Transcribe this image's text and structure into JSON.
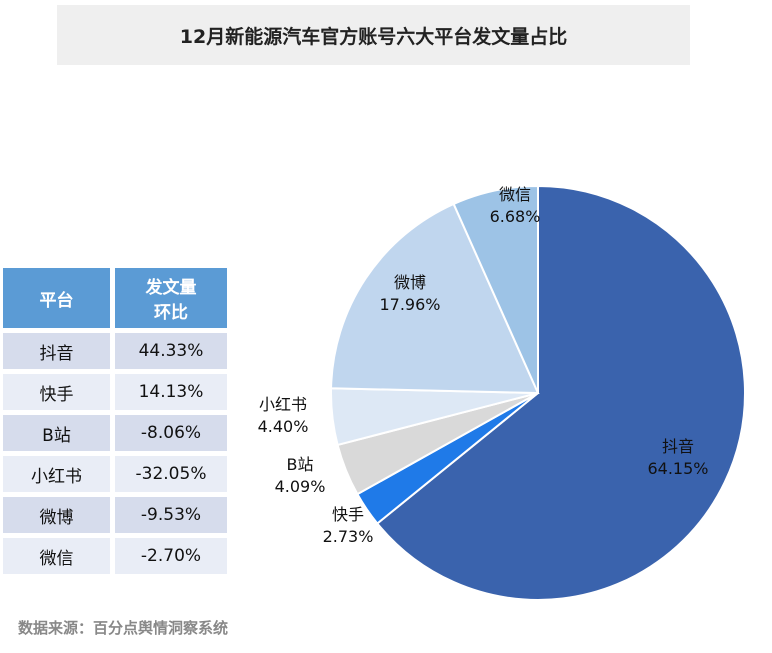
{
  "chart_data": {
    "type": "pie",
    "title": "12月新能源汽车官方账号六大平台发文量占比",
    "categories": [
      "抖音",
      "快手",
      "B站",
      "小红书",
      "微博",
      "微信"
    ],
    "values": [
      64.15,
      2.73,
      4.09,
      4.4,
      17.96,
      6.68
    ],
    "value_labels": [
      "64.15%",
      "2.73%",
      "4.09%",
      "4.40%",
      "17.96%",
      "6.68%"
    ],
    "colors": [
      "#3a63ad",
      "#1f7ae8",
      "#d9d9d9",
      "#dde8f5",
      "#c0d6ee",
      "#9dc3e6"
    ]
  },
  "table": {
    "header": [
      "平台",
      [
        "发文量",
        "环比"
      ]
    ],
    "rows": [
      [
        "抖音",
        "44.33%"
      ],
      [
        "快手",
        "14.13%"
      ],
      [
        "B站",
        "-8.06%"
      ],
      [
        "小红书",
        "-32.05%"
      ],
      [
        "微博",
        "-9.53%"
      ],
      [
        "微信",
        "-2.70%"
      ]
    ]
  },
  "source": "数据来源：百分点舆情洞察系统"
}
